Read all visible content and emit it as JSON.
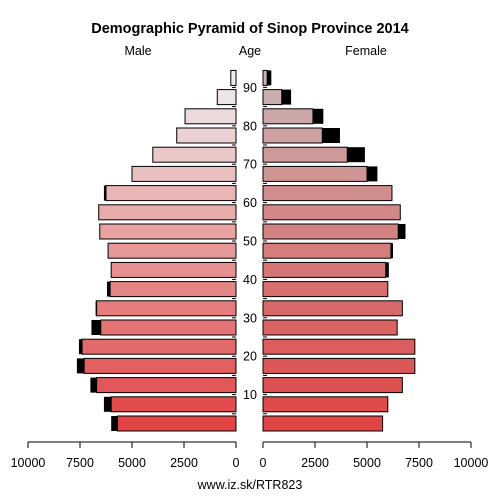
{
  "chart_data": {
    "type": "bar",
    "title": "Demographic Pyramid of Sinop Province 2014",
    "left_label": "Male",
    "center_label": "Age",
    "right_label": "Female",
    "source": "www.iz.sk/RTR823",
    "x_range": [
      0,
      10000
    ],
    "x_ticks": [
      0,
      2500,
      5000,
      7500,
      10000
    ],
    "x_tick_labels": [
      "0",
      "2500",
      "5000",
      "7500",
      "10000"
    ],
    "age_tick_labels": [
      "10",
      "20",
      "30",
      "40",
      "50",
      "60",
      "70",
      "80",
      "90"
    ],
    "age_groups": [
      "0-4",
      "5-9",
      "10-14",
      "15-19",
      "20-24",
      "25-29",
      "30-34",
      "35-39",
      "40-44",
      "45-49",
      "50-54",
      "55-59",
      "60-64",
      "65-69",
      "70-74",
      "75-79",
      "80-84",
      "85-89",
      "90+"
    ],
    "series": [
      {
        "name": "Male",
        "values": [
          5700,
          6000,
          6700,
          7300,
          7400,
          6500,
          6700,
          6050,
          6000,
          6150,
          6550,
          6600,
          6250,
          5000,
          4000,
          2850,
          2450,
          900,
          250
        ],
        "extra": [
          300,
          350,
          300,
          350,
          150,
          450,
          50,
          150,
          0,
          0,
          0,
          0,
          100,
          0,
          0,
          0,
          0,
          0,
          0
        ]
      },
      {
        "name": "Female",
        "values": [
          5750,
          6000,
          6700,
          7300,
          7300,
          6450,
          6700,
          6000,
          5900,
          6150,
          6500,
          6600,
          6200,
          5000,
          4050,
          2850,
          2400,
          900,
          200
        ],
        "extra": [
          0,
          0,
          0,
          0,
          0,
          0,
          0,
          0,
          150,
          100,
          350,
          0,
          0,
          500,
          850,
          850,
          500,
          450,
          200
        ]
      }
    ],
    "colors": {
      "male_bottom": "#e04444",
      "male_top": "#eeeeee",
      "female_bottom": "#e04444",
      "female_top": "#c9b3b3",
      "extra": "#000000"
    }
  }
}
